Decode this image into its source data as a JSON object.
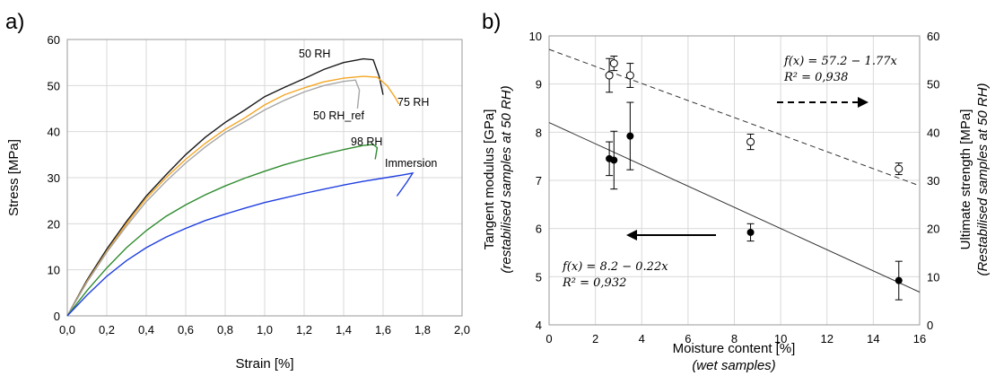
{
  "chart_data": [
    {
      "type": "line",
      "panel_letter": "a)",
      "xlabel": "Strain [%]",
      "ylabel": "Stress [MPa]",
      "xlim": [
        0,
        2.0
      ],
      "ylim": [
        0,
        60
      ],
      "x_ticks": [
        "0,0",
        "0,2",
        "0,4",
        "0,6",
        "0,8",
        "1,0",
        "1,2",
        "1,4",
        "1,6",
        "1,8",
        "2,0"
      ],
      "y_ticks": [
        "0",
        "10",
        "20",
        "30",
        "40",
        "50",
        "60"
      ],
      "grid": true,
      "series": [
        {
          "name": "50 RH",
          "color": "#1a1a1a",
          "x": [
            0,
            0.1,
            0.2,
            0.3,
            0.4,
            0.5,
            0.6,
            0.7,
            0.8,
            0.9,
            1.0,
            1.1,
            1.2,
            1.3,
            1.4,
            1.5,
            1.55,
            1.58,
            1.6
          ],
          "y": [
            0,
            7.8,
            14.5,
            20.5,
            26,
            30.6,
            35,
            38.8,
            42,
            44.7,
            47.6,
            49.6,
            51.5,
            53.5,
            55,
            55.8,
            55.6,
            52,
            48
          ]
        },
        {
          "name": "75 RH",
          "color": "#f5a623",
          "x": [
            0,
            0.1,
            0.2,
            0.3,
            0.4,
            0.5,
            0.6,
            0.7,
            0.8,
            0.9,
            1.0,
            1.1,
            1.2,
            1.3,
            1.4,
            1.5,
            1.57,
            1.62,
            1.66,
            1.68
          ],
          "y": [
            0,
            7.5,
            14,
            20,
            25.5,
            30,
            34,
            37.5,
            40.5,
            43,
            45.8,
            48,
            49.5,
            50.8,
            51.6,
            52,
            51.8,
            50,
            47.5,
            46
          ]
        },
        {
          "name": "50 RH_ref",
          "color": "#a6a6a6",
          "x": [
            0,
            0.1,
            0.2,
            0.3,
            0.4,
            0.5,
            0.6,
            0.7,
            0.8,
            0.9,
            1.0,
            1.1,
            1.2,
            1.3,
            1.4,
            1.46,
            1.48,
            1.47
          ],
          "y": [
            0,
            7.3,
            13.8,
            19.5,
            24.8,
            29.2,
            33.2,
            36.7,
            39.8,
            42.2,
            44.7,
            46.8,
            48.6,
            50,
            50.9,
            51.2,
            49,
            45
          ]
        },
        {
          "name": "98 RH",
          "color": "#2e8b2e",
          "x": [
            0,
            0.1,
            0.2,
            0.3,
            0.4,
            0.5,
            0.6,
            0.7,
            0.8,
            0.9,
            1.0,
            1.1,
            1.2,
            1.3,
            1.4,
            1.5,
            1.55,
            1.57,
            1.56
          ],
          "y": [
            0,
            5.5,
            10.4,
            14.8,
            18.5,
            21.6,
            24.1,
            26.3,
            28.2,
            29.9,
            31.4,
            32.8,
            34,
            35.1,
            36.1,
            37,
            37.2,
            36.5,
            34
          ]
        },
        {
          "name": "Immersion",
          "color": "#1f3fe0",
          "x": [
            0,
            0.1,
            0.2,
            0.3,
            0.4,
            0.5,
            0.6,
            0.7,
            0.8,
            0.9,
            1.0,
            1.1,
            1.2,
            1.3,
            1.4,
            1.5,
            1.6,
            1.7,
            1.75,
            1.72,
            1.67
          ],
          "y": [
            0,
            4.5,
            8.6,
            12,
            14.8,
            17.1,
            19,
            20.7,
            22.1,
            23.4,
            24.6,
            25.6,
            26.6,
            27.5,
            28.4,
            29.2,
            29.9,
            30.6,
            31,
            29,
            26
          ]
        }
      ]
    },
    {
      "type": "scatter",
      "panel_letter": "b)",
      "xlabel": "Moisture content [%]",
      "xlabel_sub": "(wet samples)",
      "ylabel": "Tangent modulus [GPa]",
      "ylabel_sub": "(restabilised samples at 50 RH)",
      "y2label": "Ultimate strength [MPa]",
      "y2label_sub": "(Restabilised samples at 50 RH)",
      "xlim": [
        0,
        16
      ],
      "ylim": [
        4,
        10
      ],
      "y2lim": [
        0,
        60
      ],
      "x_ticks": [
        "0",
        "2",
        "4",
        "6",
        "8",
        "10",
        "12",
        "14",
        "16"
      ],
      "y_ticks": [
        "4",
        "5",
        "6",
        "7",
        "8",
        "9",
        "10"
      ],
      "y2_ticks": [
        "0",
        "10",
        "20",
        "30",
        "40",
        "50",
        "60"
      ],
      "grid": true,
      "series": [
        {
          "marker": "filled-circle",
          "axis": "left",
          "points": [
            {
              "x": 2.6,
              "y": 7.45,
              "err": 0.35
            },
            {
              "x": 2.8,
              "y": 7.42,
              "err": 0.6
            },
            {
              "x": 3.5,
              "y": 7.92,
              "err": 0.7
            },
            {
              "x": 8.7,
              "y": 5.92,
              "err": 0.18
            },
            {
              "x": 15.1,
              "y": 4.92,
              "err": 0.4
            }
          ]
        },
        {
          "marker": "open-circle",
          "axis": "right",
          "points": [
            {
              "x": 2.6,
              "y": 51.8,
              "err": 3.5
            },
            {
              "x": 2.8,
              "y": 54.3,
              "err": 1.5
            },
            {
              "x": 3.5,
              "y": 51.8,
              "err": 2.5
            },
            {
              "x": 8.7,
              "y": 38.0,
              "err": 1.6
            },
            {
              "x": 15.1,
              "y": 32.4,
              "err": 1.2
            }
          ]
        }
      ],
      "fits": [
        {
          "axis": "left",
          "style": "solid",
          "intercept": 8.2,
          "slope": -0.22,
          "equation": "f(x) = 8.2 − 0.22x",
          "r2": "R² = 0,932"
        },
        {
          "axis": "right",
          "style": "dashed",
          "intercept": 57.2,
          "slope": -1.77,
          "equation": "f(x) = 57.2 − 1.77x",
          "r2": "R² = 0,938"
        }
      ]
    }
  ]
}
